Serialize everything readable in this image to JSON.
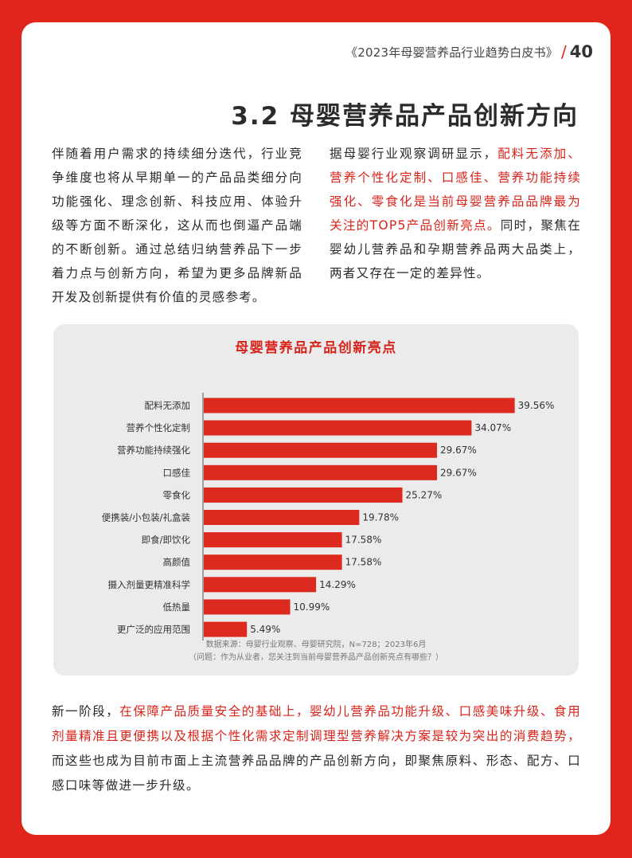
{
  "header": {
    "title": "《2023年母婴营养品行业趋势白皮书》",
    "slash": "/",
    "page_number": "40"
  },
  "section_title": "3.2 母婴营养品产品创新方向",
  "left_paragraph": "伴随着用户需求的持续细分迭代，行业竞争维度也将从早期单一的产品品类细分向功能强化、理念创新、科技应用、体验升级等方面不断深化，这从而也倒逼产品端的不断创新。通过总结归纳营养品下一步着力点与创新方向，希望为更多品牌新品开发及创新提供有价值的灵感参考。",
  "right_paragraph": {
    "part1": "据母婴行业观察调研显示，",
    "highlight": "配料无添加、营养个性化定制、口感佳、营养功能持续强化、零食化是当前母婴营养品品牌最为关注的TOP5产品创新亮点。",
    "part2": "同时，聚焦在婴幼儿营养品和孕期营养品两大品类上，两者又存在一定的差异性。"
  },
  "chart_data": {
    "type": "bar",
    "orientation": "horizontal",
    "title": "母婴营养品产品创新亮点",
    "categories": [
      "配料无添加",
      "营养个性化定制",
      "营养功能持续强化",
      "口感佳",
      "零食化",
      "便携装/小包装/礼盒装",
      "即食/即饮化",
      "高颜值",
      "摄入剂量更精准科学",
      "低热量",
      "更广泛的应用范围"
    ],
    "values": [
      39.56,
      34.07,
      29.67,
      29.67,
      25.27,
      19.78,
      17.58,
      17.58,
      14.29,
      10.99,
      5.49
    ],
    "value_labels": [
      "39.56%",
      "34.07%",
      "29.67%",
      "29.67%",
      "25.27%",
      "19.78%",
      "17.58%",
      "17.58%",
      "14.29%",
      "10.99%",
      "5.49%"
    ],
    "xlim": [
      0,
      40
    ],
    "grid": false,
    "bar_color": "#dd2a1f"
  },
  "chart_notes": {
    "source": "数据来源：母婴行业观察、母婴研究院，N=728；2023年6月",
    "question": "（问题：作为从业者，您关注到当前母婴营养品产品创新亮点有哪些？）"
  },
  "bottom_paragraph": {
    "part1": "新一阶段，",
    "highlight": "在保障产品质量安全的基础上，婴幼儿营养品功能升级、口感美味升级、食用剂量精准且更便携以及根据个性化需求定制调理型营养解决方案是较为突出的消费趋势，",
    "part2": "而这些也成为目前市面上主流营养品品牌的产品创新方向，即聚焦原料、形态、配方、口感口味等做进一步升级。"
  }
}
